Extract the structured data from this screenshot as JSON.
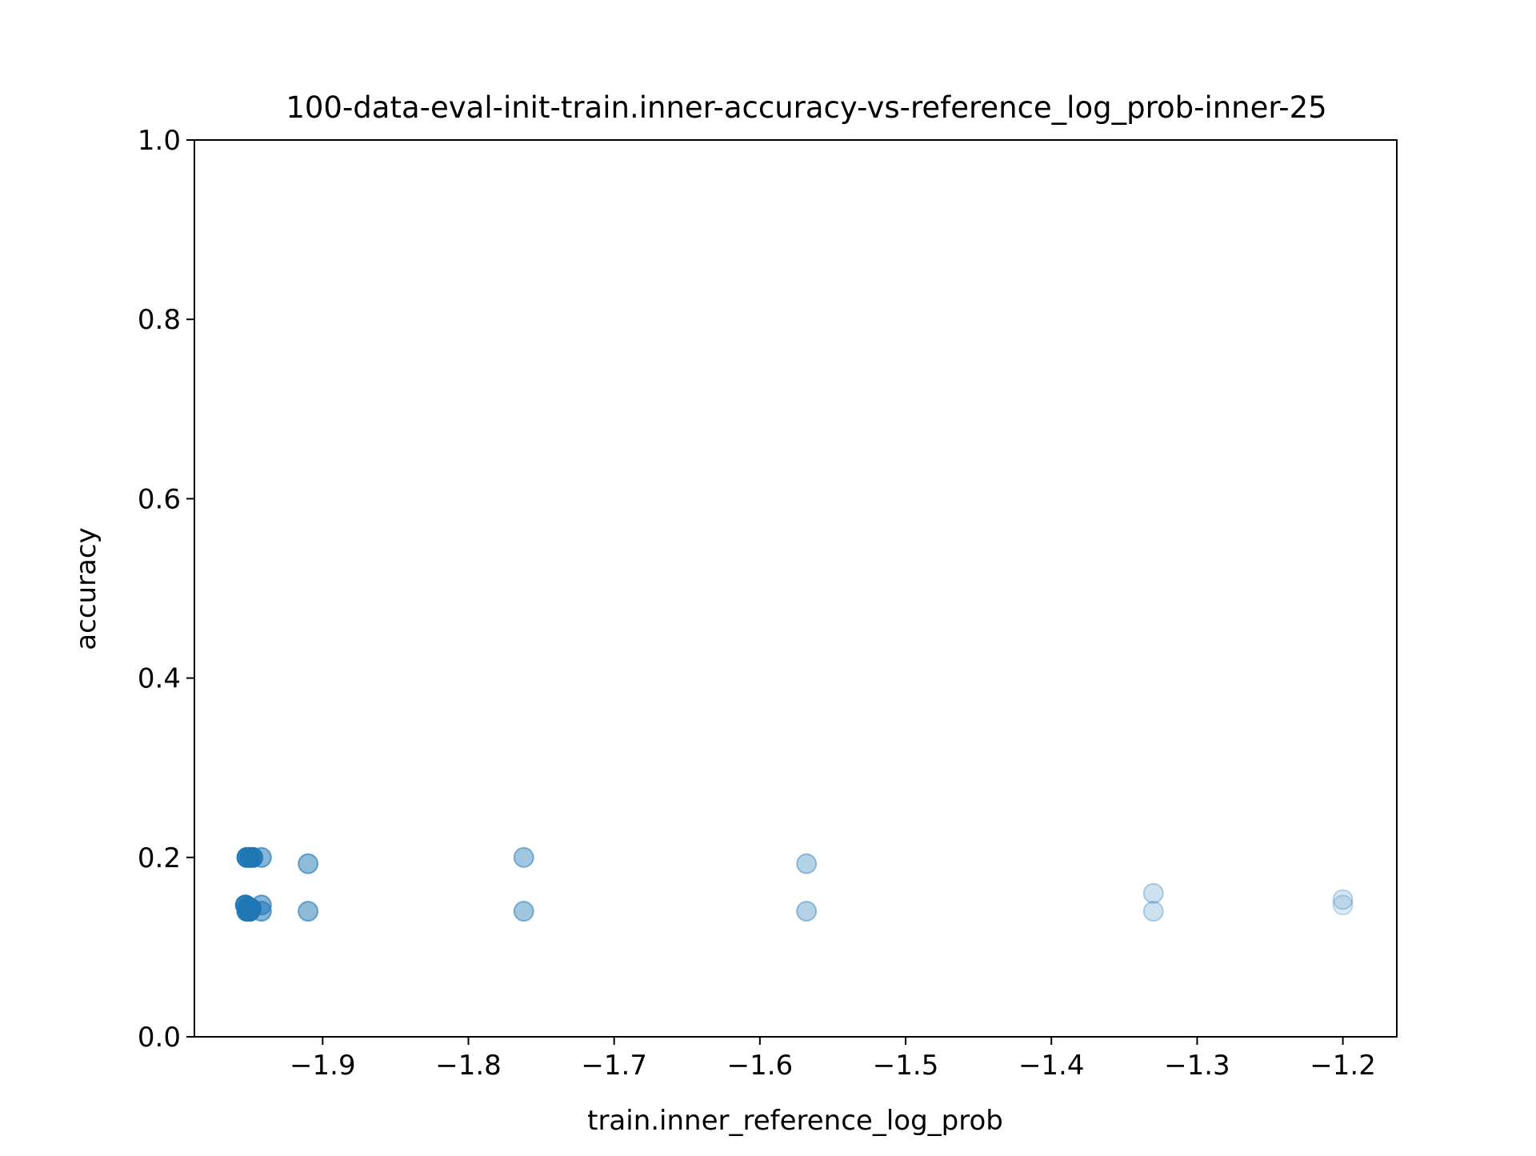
{
  "chart_data": {
    "type": "scatter",
    "title": "100-data-eval-init-train.inner-accuracy-vs-reference_log_prob-inner-25",
    "xlabel": "train.inner_reference_log_prob",
    "ylabel": "accuracy",
    "xlim": [
      -1.988,
      -1.163
    ],
    "ylim": [
      0.0,
      1.0
    ],
    "xticks": [
      -1.9,
      -1.8,
      -1.7,
      -1.6,
      -1.5,
      -1.4,
      -1.3,
      -1.2
    ],
    "xtick_labels": [
      "−1.9",
      "−1.8",
      "−1.7",
      "−1.6",
      "−1.5",
      "−1.4",
      "−1.3",
      "−1.2"
    ],
    "yticks": [
      0.0,
      0.2,
      0.4,
      0.6,
      0.8,
      1.0
    ],
    "ytick_labels": [
      "0.0",
      "0.2",
      "0.4",
      "0.6",
      "0.8",
      "1.0"
    ],
    "grid": false,
    "marker_color": "#1f77b4",
    "points": [
      {
        "x": -1.952,
        "y": 0.2,
        "alpha": 0.9
      },
      {
        "x": -1.95,
        "y": 0.2,
        "alpha": 0.9
      },
      {
        "x": -1.948,
        "y": 0.2,
        "alpha": 0.9
      },
      {
        "x": -1.953,
        "y": 0.147,
        "alpha": 0.9
      },
      {
        "x": -1.951,
        "y": 0.145,
        "alpha": 0.9
      },
      {
        "x": -1.949,
        "y": 0.143,
        "alpha": 0.9
      },
      {
        "x": -1.952,
        "y": 0.14,
        "alpha": 0.9
      },
      {
        "x": -1.95,
        "y": 0.14,
        "alpha": 0.9
      },
      {
        "x": -1.942,
        "y": 0.2,
        "alpha": 0.55
      },
      {
        "x": -1.942,
        "y": 0.147,
        "alpha": 0.55
      },
      {
        "x": -1.942,
        "y": 0.14,
        "alpha": 0.55
      },
      {
        "x": -1.91,
        "y": 0.193,
        "alpha": 0.5
      },
      {
        "x": -1.91,
        "y": 0.14,
        "alpha": 0.5
      },
      {
        "x": -1.762,
        "y": 0.2,
        "alpha": 0.42
      },
      {
        "x": -1.762,
        "y": 0.14,
        "alpha": 0.42
      },
      {
        "x": -1.568,
        "y": 0.193,
        "alpha": 0.33
      },
      {
        "x": -1.568,
        "y": 0.14,
        "alpha": 0.33
      },
      {
        "x": -1.33,
        "y": 0.16,
        "alpha": 0.22
      },
      {
        "x": -1.33,
        "y": 0.14,
        "alpha": 0.22
      },
      {
        "x": -1.2,
        "y": 0.153,
        "alpha": 0.18
      },
      {
        "x": -1.2,
        "y": 0.147,
        "alpha": 0.15
      }
    ]
  }
}
